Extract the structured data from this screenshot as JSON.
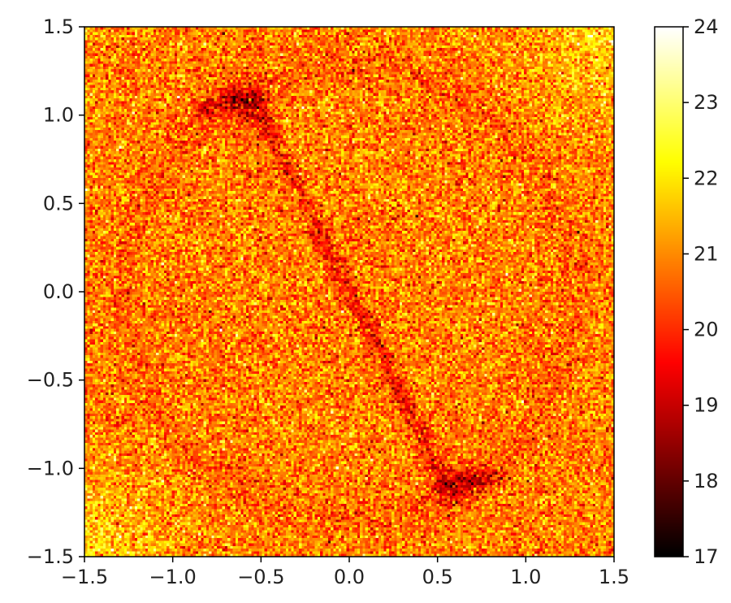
{
  "chart_data": {
    "type": "heatmap",
    "title": "",
    "xlabel": "",
    "ylabel": "",
    "xlim": [
      -1.5,
      1.5
    ],
    "ylim": [
      -1.5,
      1.5
    ],
    "x_ticks": [
      "−1.5",
      "−1.0",
      "−0.5",
      "0.0",
      "0.5",
      "1.0",
      "1.5"
    ],
    "y_ticks": [
      "1.5",
      "1.0",
      "0.5",
      "0.0",
      "−0.5",
      "−1.0",
      "−1.5"
    ],
    "x_tick_values": [
      -1.5,
      -1.0,
      -0.5,
      0.0,
      0.5,
      1.0,
      1.5
    ],
    "y_tick_values": [
      1.5,
      1.0,
      0.5,
      0.0,
      -0.5,
      -1.0,
      -1.5
    ],
    "colormap": "hot",
    "colorbar": {
      "range": [
        17,
        24
      ],
      "ticks": [
        "24",
        "23",
        "22",
        "21",
        "20",
        "19",
        "18",
        "17"
      ],
      "tick_values": [
        24,
        23,
        22,
        21,
        20,
        19,
        18,
        17
      ]
    },
    "grid_resolution": 200,
    "background_level": 20.9,
    "noise_amplitude": 1.4,
    "pattern": {
      "dark_curve_points": [
        [
          -0.85,
          1.05
        ],
        [
          -0.55,
          1.1
        ],
        [
          0.0,
          0.0
        ],
        [
          0.55,
          -1.1
        ],
        [
          0.85,
          -1.05
        ]
      ],
      "dark_blob_centers": [
        [
          -0.6,
          1.05
        ],
        [
          0.6,
          -1.1
        ]
      ],
      "dark_depth": 2.0,
      "bright_corners": [
        [
          1.5,
          1.5
        ],
        [
          -1.5,
          -1.5
        ]
      ]
    }
  }
}
